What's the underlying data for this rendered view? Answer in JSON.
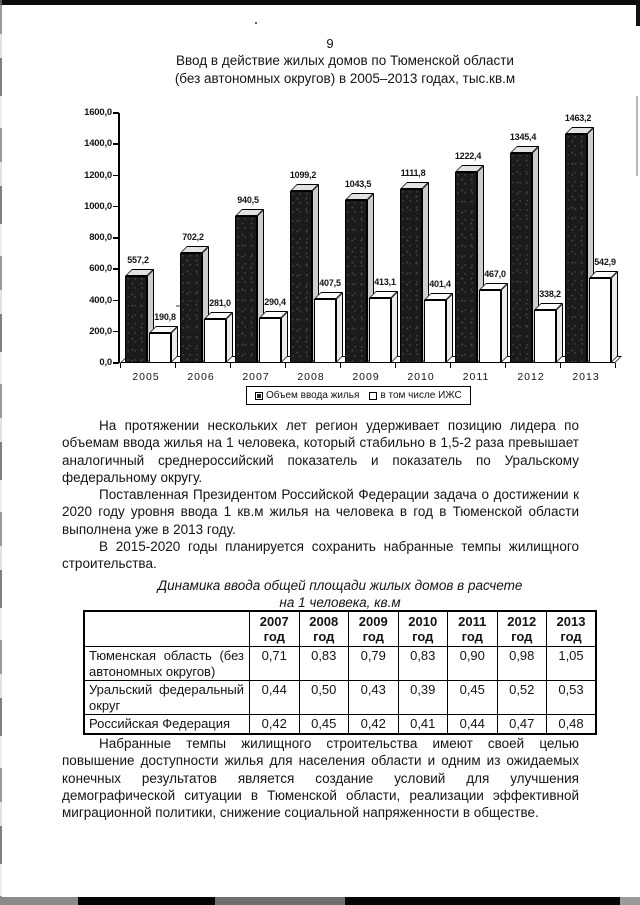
{
  "page": {
    "number": "9"
  },
  "chart": {
    "title_line1": "Ввод в действие жилых домов по Тюменской области",
    "title_line2": "(без автономных округов) в 2005–2013 годах, тыс.кв.м"
  },
  "chart_data": {
    "type": "bar",
    "title": "Ввод в действие жилых домов по Тюменской области (без автономных округов) в 2005–2013 годах, тыс.кв.м",
    "categories": [
      "2005",
      "2006",
      "2007",
      "2008",
      "2009",
      "2010",
      "2011",
      "2012",
      "2013"
    ],
    "series": [
      {
        "name": "Объем ввода жилья",
        "values": [
          557.2,
          702.2,
          940.5,
          1099.2,
          1043.5,
          1111.8,
          1222.4,
          1345.4,
          1463.2
        ],
        "labels": [
          "557,2",
          "702,2",
          "940,5",
          "1099,2",
          "1043,5",
          "1111,8",
          "1222,4",
          "1345,4",
          "1463,2"
        ]
      },
      {
        "name": "в том числе ИЖС",
        "values": [
          190.8,
          281.0,
          290.4,
          407.5,
          413.1,
          401.4,
          467.0,
          338.2,
          542.9
        ],
        "labels": [
          "190,8",
          "281,0",
          "290,4",
          "407,5",
          "413,1",
          "401,4",
          "467,0",
          "338,2",
          "542,9"
        ]
      }
    ],
    "ylim": [
      0,
      1600
    ],
    "ytick_values": [
      0,
      200,
      400,
      600,
      800,
      1000,
      1200,
      1400,
      1600
    ],
    "ytick_labels": [
      "0,0",
      "200,0",
      "400,0",
      "600,0",
      "800,0",
      "1000,0",
      "1200,0",
      "1400,0",
      "1600,0"
    ],
    "grid": false,
    "legend_position": "bottom",
    "bar_style": "3d"
  },
  "body": {
    "paragraphs": [
      "На протяжении нескольких лет регион удерживает позицию лидера по объемам ввода жилья на 1 человека, который стабильно в 1,5-2 раза превышает аналогичный среднероссийский показатель и показатель по Уральскому федеральному округу.",
      "Поставленная Президентом Российской Федерации задача о достижении к 2020 году уровня ввода 1 кв.м жилья на человека в год в Тюменской области выполнена уже в 2013 году.",
      "В 2015-2020 годы планируется сохранить набранные темпы жилищного строительства."
    ],
    "closing": "Набранные темпы жилищного строительства имеют своей целью повышение доступности жилья для населения области и одним из ожидаемых конечных результатов является создание условий для улучшения демографической ситуации в Тюменской области, реализации эффективной миграционной политики, снижение социальной напряженности в обществе."
  },
  "table": {
    "caption_line1": "Динамика ввода общей площади жилых домов в расчете",
    "caption_line2": "на 1 человека, кв.м",
    "corner": "",
    "columns": [
      "2007\nгод",
      "2008\nгод",
      "2009\nгод",
      "2010\nгод",
      "2011\nгод",
      "2012\nгод",
      "2013\nгод"
    ],
    "rows": [
      {
        "label": "Тюменская область (без автономных округов)",
        "values": [
          "0,71",
          "0,83",
          "0,79",
          "0,83",
          "0,90",
          "0,98",
          "1,05"
        ]
      },
      {
        "label": "Уральский федеральный округ",
        "values": [
          "0,44",
          "0,50",
          "0,43",
          "0,39",
          "0,45",
          "0,52",
          "0,53"
        ]
      },
      {
        "label": "Российская Федерация",
        "values": [
          "0,42",
          "0,45",
          "0,42",
          "0,41",
          "0,44",
          "0,47",
          "0,48"
        ]
      }
    ]
  }
}
